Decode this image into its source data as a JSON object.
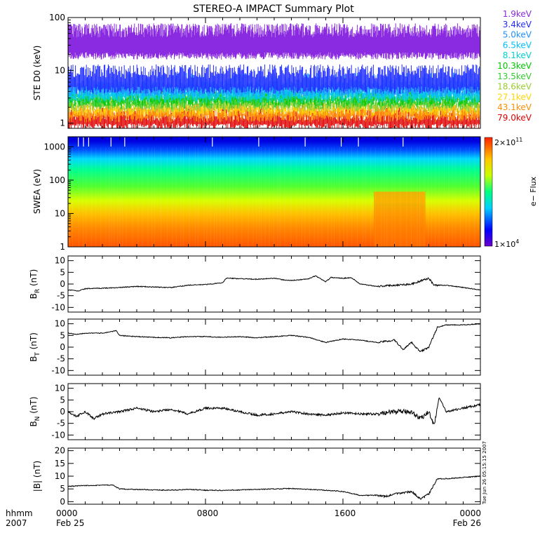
{
  "title": "STEREO-A IMPACT Summary Plot",
  "footer": {
    "hhmm": "hhmm",
    "year": "2007",
    "tick_labels": [
      "0000",
      "0800",
      "1600",
      "0000"
    ],
    "date_labels": [
      "Feb 25",
      "",
      "",
      "Feb 26"
    ],
    "timestamp": "Tue Jun 26 05:15:15 2007"
  },
  "colors": {
    "purple": "#8a2be2",
    "blue": "#1f2bff",
    "cyan": "#00d2d2",
    "green": "#00c800",
    "yellow": "#ffd700",
    "orange": "#ff8c00",
    "red": "#e00000"
  },
  "chart_data": [
    {
      "type": "line",
      "id": "ste",
      "ylabel": "STE D0 (keV)",
      "yscale": "log",
      "ylim": [
        0.8,
        100
      ],
      "yticks": [
        "1",
        "10",
        "100"
      ],
      "x_hours": [
        0,
        24
      ],
      "legend_position": "right",
      "series": [
        {
          "name": "1.9keV",
          "color": "#8a2be2",
          "band": [
            20,
            60
          ]
        },
        {
          "name": "3.4keV",
          "color": "#1f2bff",
          "band": [
            4.5,
            10
          ]
        },
        {
          "name": "5.0keV",
          "color": "#1e90ff",
          "band": [
            4,
            7
          ]
        },
        {
          "name": "6.5keV",
          "color": "#00bfff",
          "band": [
            3.5,
            5
          ]
        },
        {
          "name": "8.1keV",
          "color": "#00d2d2",
          "band": [
            3,
            4.2
          ]
        },
        {
          "name": "10.3keV",
          "color": "#00c800",
          "band": [
            2.6,
            3.6
          ]
        },
        {
          "name": "13.5keV",
          "color": "#32cd32",
          "band": [
            2.3,
            3
          ]
        },
        {
          "name": "18.6keV",
          "color": "#9acd32",
          "band": [
            2,
            2.6
          ]
        },
        {
          "name": "27.1keV",
          "color": "#ffd700",
          "band": [
            1.7,
            2.2
          ]
        },
        {
          "name": "43.1keV",
          "color": "#ff8c00",
          "band": [
            1.3,
            1.9
          ]
        },
        {
          "name": "79.0keV",
          "color": "#e00000",
          "band": [
            0.9,
            1.6
          ]
        }
      ]
    },
    {
      "type": "heatmap",
      "id": "swea",
      "ylabel": "SWEA (eV)",
      "yscale": "log",
      "ylim": [
        1,
        2000
      ],
      "yticks": [
        "1",
        "10",
        "100",
        "1000"
      ],
      "colorbar": {
        "label": "e− Flux",
        "max_label": "2×10",
        "max_exp": "11",
        "min_label": "1×10",
        "min_exp": "4"
      },
      "enhanced_interval_hours": [
        17.8,
        20.8
      ]
    },
    {
      "type": "line",
      "id": "br",
      "ylabel": "B",
      "ylabel_sub": "R",
      "ylabel_unit": " (nT)",
      "ylim": [
        -12,
        12
      ],
      "yticks": [
        -10,
        -5,
        0,
        5,
        10
      ],
      "x": [
        0,
        0.6,
        1,
        2,
        3,
        4,
        5,
        6,
        7,
        8,
        9,
        9.2,
        10,
        11,
        12,
        12.5,
        13,
        14,
        14.4,
        15,
        15.3,
        16,
        16.5,
        17,
        18,
        19,
        20,
        21,
        21.3,
        22,
        23,
        24
      ],
      "y": [
        -2.5,
        -3,
        -2,
        -1.8,
        -1.5,
        -1,
        -1.3,
        -1.5,
        -0.5,
        -0.2,
        0.5,
        2.5,
        2.3,
        2,
        2.5,
        1.8,
        1.5,
        2.2,
        3.5,
        1,
        2.8,
        2.5,
        2.7,
        0,
        -1,
        -0.5,
        0,
        2.5,
        -0.5,
        -0.5,
        -1.5,
        -2.5
      ]
    },
    {
      "type": "line",
      "id": "bt",
      "ylabel": "B",
      "ylabel_sub": "T",
      "ylabel_unit": " (nT)",
      "ylim": [
        -12,
        12
      ],
      "yticks": [
        -10,
        -5,
        0,
        5,
        10
      ],
      "x": [
        0,
        0.5,
        1,
        2,
        2.8,
        3,
        4,
        5,
        6,
        7,
        8,
        9,
        10,
        11,
        12,
        13,
        14,
        15,
        16,
        17,
        18,
        19,
        19.5,
        20,
        20.5,
        21,
        21.5,
        22,
        23,
        24
      ],
      "y": [
        6,
        5.5,
        6,
        6,
        7,
        5,
        4.5,
        4.2,
        4,
        4.5,
        4.5,
        4.2,
        4.5,
        4,
        4.5,
        5,
        4.2,
        2,
        3.5,
        3,
        2,
        3,
        -1,
        2,
        -2,
        0,
        8.5,
        9.5,
        9.5,
        10
      ]
    },
    {
      "type": "line",
      "id": "bn",
      "ylabel": "B",
      "ylabel_sub": "N",
      "ylabel_unit": " (nT)",
      "ylim": [
        -12,
        12
      ],
      "yticks": [
        -10,
        -5,
        0,
        5,
        10
      ],
      "x": [
        0,
        0.5,
        1,
        1.5,
        2,
        3,
        4,
        5,
        6,
        7,
        8,
        9,
        10,
        11,
        12,
        13,
        14,
        15,
        16,
        17,
        18,
        19,
        20,
        20.5,
        21,
        21.3,
        21.6,
        22,
        23,
        24
      ],
      "y": [
        0,
        -2,
        0,
        -3,
        -1,
        0,
        1.5,
        0,
        1,
        -1,
        1.5,
        1.5,
        0,
        -1.5,
        -1,
        0,
        -1,
        -1.5,
        -0.5,
        -1,
        -1,
        0,
        0,
        -3,
        0,
        -6,
        6,
        0,
        1.5,
        3
      ]
    },
    {
      "type": "line",
      "id": "bmag",
      "ylabel": "|B| (nT)",
      "ylim": [
        -1,
        21
      ],
      "yticks": [
        0,
        5,
        10,
        15,
        20
      ],
      "x": [
        0,
        1,
        2,
        2.6,
        3,
        4,
        5,
        6,
        7,
        8,
        9,
        10,
        11,
        12,
        13,
        14,
        15,
        16,
        17,
        18,
        18.5,
        19,
        20,
        20.5,
        21,
        21.5,
        22,
        23,
        24
      ],
      "y": [
        6,
        6.3,
        6.5,
        6.5,
        5,
        4.8,
        4.6,
        4.5,
        4.8,
        4.5,
        4.4,
        4.6,
        4.8,
        5,
        5.2,
        4.8,
        4.5,
        4,
        2.5,
        2.5,
        2,
        3,
        4,
        1,
        3,
        9,
        9,
        9.5,
        10
      ]
    }
  ]
}
